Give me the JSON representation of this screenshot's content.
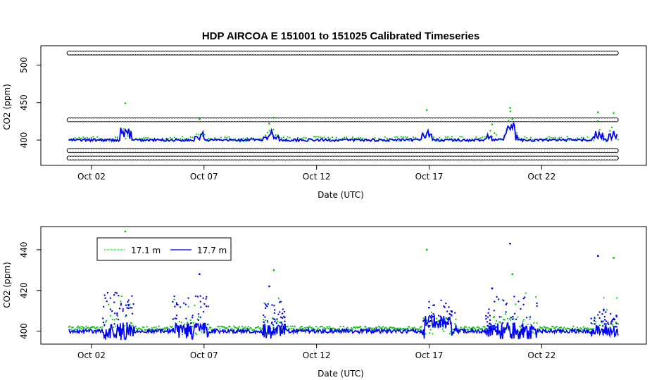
{
  "chart_data": [
    {
      "type": "scatter",
      "title": "HDP   AIRCOA  E   151001  to  151025   Calibrated Timeseries",
      "xlabel": "Date (UTC)",
      "ylabel": "CO2 (ppm)",
      "x_tick_labels": [
        "Oct 02",
        "Oct 07",
        "Oct 12",
        "Oct 17",
        "Oct 22"
      ],
      "x_ticks_day": [
        2,
        7,
        12,
        17,
        22
      ],
      "xlim_day": [
        0,
        26.4
      ],
      "y_ticks": [
        400,
        450,
        500
      ],
      "ylim": [
        370,
        522
      ],
      "grid": false,
      "series": [
        {
          "marker": "circle",
          "color": "#000000",
          "name": "",
          "reference_levels": [
            516,
            427,
            386,
            376
          ],
          "x_range_day": [
            1,
            25.4
          ]
        },
        {
          "marker": "dot",
          "color": "#00cc00",
          "name": "",
          "baseline": 401
        },
        {
          "marker": "line",
          "color": "#0000ff",
          "name": "",
          "baseline": 400
        }
      ]
    },
    {
      "type": "scatter",
      "xlabel": "Date (UTC)",
      "ylabel": "CO2 (ppm)",
      "x_tick_labels": [
        "Oct 02",
        "Oct 07",
        "Oct 12",
        "Oct 17",
        "Oct 22"
      ],
      "x_ticks_day": [
        2,
        7,
        12,
        17,
        22
      ],
      "xlim_day": [
        0,
        26.4
      ],
      "y_ticks": [
        400,
        420,
        440
      ],
      "ylim": [
        395,
        450
      ],
      "grid": false,
      "legend_placement": "top-left",
      "series": [
        {
          "name": "17.1 m",
          "color": "#00cc00",
          "baseline": 401
        },
        {
          "name": "17.7 m",
          "color": "#0000ff",
          "baseline": 400
        }
      ],
      "spikes": [
        {
          "day": 3.5,
          "value": 449
        },
        {
          "day": 6.8,
          "value": 428
        },
        {
          "day": 10.1,
          "value": 430
        },
        {
          "day": 9.9,
          "value": 422
        },
        {
          "day": 16.9,
          "value": 440
        },
        {
          "day": 20.6,
          "value": 443
        },
        {
          "day": 20.7,
          "value": 428
        },
        {
          "day": 24.5,
          "value": 437
        },
        {
          "day": 25.2,
          "value": 436
        },
        {
          "day": 19.8,
          "value": 421
        }
      ]
    }
  ]
}
